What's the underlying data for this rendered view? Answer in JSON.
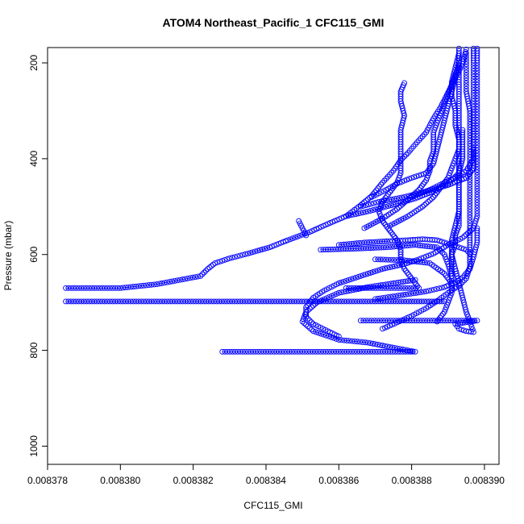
{
  "chart_data": {
    "type": "scatter",
    "title": "ATOM4 Northeast_Pacific_1 CFC115_GMI",
    "xlabel": "CFC115_GMI",
    "ylabel": "Pressure (mbar)",
    "xlim": [
      0.008378,
      0.0083904
    ],
    "ylim": [
      1038,
      168
    ],
    "y_reversed": true,
    "x_ticks": [
      "0.008378",
      "0.008380",
      "0.008382",
      "0.008384",
      "0.008386",
      "0.008388",
      "0.008390"
    ],
    "x_tick_values": [
      0.008378,
      0.00838,
      0.008382,
      0.008384,
      0.008386,
      0.008388,
      0.00839
    ],
    "y_ticks": [
      "200",
      "400",
      "600",
      "800",
      "1000"
    ],
    "y_tick_values": [
      200,
      400,
      600,
      800,
      1000
    ],
    "marker": "open-circle",
    "color": "#0000ff",
    "grid": false,
    "legend": "none",
    "series": [
      {
        "points": [
          [
            0.0083785,
            670
          ],
          [
            0.00838,
            670
          ],
          [
            0.008381,
            662
          ],
          [
            0.0083822,
            645
          ],
          [
            0.0083824,
            630
          ],
          [
            0.0083826,
            618
          ],
          [
            0.008383,
            608
          ],
          [
            0.0083835,
            598
          ],
          [
            0.0083841,
            585
          ],
          [
            0.0083846,
            570
          ],
          [
            0.0083852,
            553
          ],
          [
            0.0083857,
            536
          ],
          [
            0.0083862,
            520
          ],
          [
            0.0083866,
            497
          ],
          [
            0.0083869,
            478
          ],
          [
            0.0083872,
            450
          ],
          [
            0.0083875,
            425
          ],
          [
            0.0083877,
            403
          ],
          [
            0.0083879,
            388
          ],
          [
            0.0083881,
            370
          ],
          [
            0.0083884,
            345
          ],
          [
            0.0083886,
            316
          ],
          [
            0.0083888,
            292
          ],
          [
            0.008389,
            262
          ],
          [
            0.0083892,
            232
          ],
          [
            0.0083894,
            202
          ],
          [
            0.0083895,
            172
          ]
        ]
      },
      {
        "points": [
          [
            0.0083785,
            698
          ],
          [
            0.00838,
            698
          ],
          [
            0.008382,
            698
          ],
          [
            0.008384,
            698
          ],
          [
            0.0083852,
            698
          ],
          [
            0.008386,
            698
          ],
          [
            0.008387,
            698
          ],
          [
            0.008388,
            698
          ],
          [
            0.0083889,
            698
          ]
        ]
      },
      {
        "points": [
          [
            0.0083828,
            803
          ],
          [
            0.008384,
            803
          ],
          [
            0.008386,
            803
          ],
          [
            0.008387,
            803
          ],
          [
            0.0083881,
            803
          ],
          [
            0.0083874,
            793
          ],
          [
            0.0083868,
            784
          ],
          [
            0.008386,
            778
          ],
          [
            0.0083853,
            760
          ],
          [
            0.008385,
            740
          ],
          [
            0.0083851,
            720
          ],
          [
            0.0083854,
            700
          ],
          [
            0.008386,
            680
          ],
          [
            0.0083868,
            668
          ],
          [
            0.0083875,
            660
          ],
          [
            0.0083881,
            653
          ]
        ]
      },
      {
        "points": [
          [
            0.008386,
            771
          ],
          [
            0.0083857,
            760
          ],
          [
            0.0083853,
            745
          ],
          [
            0.0083851,
            730
          ],
          [
            0.0083851,
            710
          ],
          [
            0.0083853,
            690
          ],
          [
            0.0083856,
            675
          ],
          [
            0.008386,
            660
          ],
          [
            0.0083866,
            645
          ],
          [
            0.0083872,
            630
          ],
          [
            0.0083878,
            620
          ],
          [
            0.0083882,
            610
          ],
          [
            0.0083886,
            598
          ],
          [
            0.008389,
            580
          ],
          [
            0.0083894,
            565
          ],
          [
            0.0083897,
            545
          ],
          [
            0.0083898,
            520
          ],
          [
            0.0083898,
            480
          ],
          [
            0.0083898,
            440
          ],
          [
            0.0083898,
            400
          ],
          [
            0.0083898,
            360
          ],
          [
            0.0083898,
            320
          ],
          [
            0.0083898,
            280
          ],
          [
            0.0083898,
            240
          ],
          [
            0.0083898,
            200
          ],
          [
            0.0083898,
            170
          ]
        ]
      },
      {
        "points": [
          [
            0.0083862,
            670
          ],
          [
            0.008387,
            670
          ],
          [
            0.0083876,
            670
          ],
          [
            0.0083882,
            670
          ],
          [
            0.008388,
            650
          ],
          [
            0.0083878,
            630
          ],
          [
            0.0083877,
            610
          ],
          [
            0.0083877,
            590
          ],
          [
            0.0083876,
            570
          ],
          [
            0.0083874,
            550
          ],
          [
            0.0083872,
            530
          ],
          [
            0.0083871,
            510
          ],
          [
            0.0083872,
            490
          ],
          [
            0.0083874,
            470
          ],
          [
            0.0083876,
            450
          ],
          [
            0.0083877,
            430
          ],
          [
            0.0083877,
            400
          ],
          [
            0.0083877,
            370
          ],
          [
            0.0083877,
            340
          ],
          [
            0.0083878,
            310
          ],
          [
            0.0083877,
            280
          ],
          [
            0.0083877,
            260
          ],
          [
            0.0083878,
            242
          ]
        ]
      },
      {
        "points": [
          [
            0.0083866,
            738
          ],
          [
            0.0083872,
            738
          ],
          [
            0.008388,
            738
          ],
          [
            0.008389,
            738
          ],
          [
            0.0083898,
            738
          ],
          [
            0.0083892,
            745
          ],
          [
            0.0083893,
            755
          ],
          [
            0.0083895,
            760
          ],
          [
            0.0083897,
            762
          ],
          [
            0.0083896,
            740
          ],
          [
            0.0083895,
            720
          ],
          [
            0.0083894,
            690
          ],
          [
            0.0083893,
            660
          ],
          [
            0.0083892,
            630
          ],
          [
            0.0083891,
            600
          ],
          [
            0.0083891,
            570
          ],
          [
            0.0083892,
            540
          ],
          [
            0.0083893,
            510
          ],
          [
            0.0083893,
            480
          ],
          [
            0.0083893,
            450
          ],
          [
            0.0083893,
            420
          ],
          [
            0.0083893,
            390
          ],
          [
            0.0083893,
            360
          ],
          [
            0.0083892,
            330
          ],
          [
            0.0083892,
            300
          ],
          [
            0.0083891,
            270
          ],
          [
            0.0083891,
            240
          ],
          [
            0.0083892,
            210
          ],
          [
            0.0083893,
            180
          ],
          [
            0.0083893,
            170
          ]
        ]
      },
      {
        "points": [
          [
            0.0083872,
            755
          ],
          [
            0.0083876,
            742
          ],
          [
            0.008388,
            728
          ],
          [
            0.0083884,
            712
          ],
          [
            0.0083887,
            697
          ],
          [
            0.008389,
            680
          ],
          [
            0.0083893,
            665
          ],
          [
            0.0083895,
            650
          ],
          [
            0.0083896,
            625
          ],
          [
            0.0083896,
            600
          ],
          [
            0.0083896,
            570
          ],
          [
            0.0083896,
            540
          ],
          [
            0.0083896,
            500
          ],
          [
            0.0083896,
            460
          ],
          [
            0.0083896,
            420
          ],
          [
            0.0083896,
            380
          ],
          [
            0.0083896,
            340
          ],
          [
            0.0083896,
            300
          ],
          [
            0.0083895,
            260
          ],
          [
            0.0083895,
            220
          ],
          [
            0.0083895,
            180
          ]
        ]
      },
      {
        "points": [
          [
            0.008387,
            693
          ],
          [
            0.0083877,
            685
          ],
          [
            0.0083884,
            677
          ],
          [
            0.0083889,
            668
          ],
          [
            0.0083892,
            658
          ],
          [
            0.0083894,
            648
          ],
          [
            0.0083896,
            630
          ],
          [
            0.0083897,
            605
          ],
          [
            0.0083898,
            575
          ],
          [
            0.0083898,
            545
          ]
        ]
      },
      {
        "points": [
          [
            0.0083887,
            740
          ],
          [
            0.0083889,
            720
          ],
          [
            0.008389,
            700
          ],
          [
            0.0083891,
            680
          ],
          [
            0.0083891,
            660
          ],
          [
            0.0083891,
            640
          ],
          [
            0.0083891,
            620
          ],
          [
            0.0083891,
            600
          ],
          [
            0.0083892,
            580
          ],
          [
            0.0083892,
            560
          ],
          [
            0.0083893,
            540
          ],
          [
            0.0083893,
            520
          ],
          [
            0.0083893,
            500
          ],
          [
            0.0083893,
            480
          ],
          [
            0.0083893,
            450
          ],
          [
            0.0083893,
            420
          ],
          [
            0.0083893,
            390
          ],
          [
            0.0083893,
            360
          ],
          [
            0.0083893,
            330
          ],
          [
            0.0083893,
            300
          ],
          [
            0.0083893,
            270
          ],
          [
            0.0083893,
            240
          ],
          [
            0.0083893,
            210
          ],
          [
            0.0083893,
            180
          ]
        ]
      },
      {
        "points": [
          [
            0.008386,
            580
          ],
          [
            0.0083867,
            575
          ],
          [
            0.0083874,
            572
          ],
          [
            0.0083879,
            570
          ],
          [
            0.0083883,
            568
          ],
          [
            0.0083887,
            570
          ],
          [
            0.0083889,
            575
          ],
          [
            0.0083891,
            580
          ],
          [
            0.0083893,
            585
          ],
          [
            0.0083895,
            590
          ],
          [
            0.0083896,
            598
          ]
        ]
      },
      {
        "points": [
          [
            0.0083849,
            530
          ],
          [
            0.008385,
            545
          ],
          [
            0.0083851,
            560
          ]
        ]
      },
      {
        "points": [
          [
            0.0083855,
            590
          ],
          [
            0.0083864,
            588
          ],
          [
            0.0083873,
            585
          ],
          [
            0.0083881,
            580
          ],
          [
            0.0083887,
            585
          ],
          [
            0.0083889,
            600
          ],
          [
            0.008389,
            620
          ],
          [
            0.0083891,
            645
          ]
        ]
      },
      {
        "points": [
          [
            0.008387,
            610
          ],
          [
            0.0083878,
            612
          ],
          [
            0.0083885,
            618
          ],
          [
            0.0083889,
            640
          ],
          [
            0.0083891,
            660
          ]
        ]
      },
      {
        "points": [
          [
            0.0083866,
            500
          ],
          [
            0.0083871,
            490
          ],
          [
            0.0083878,
            480
          ],
          [
            0.0083884,
            468
          ],
          [
            0.008389,
            455
          ],
          [
            0.0083895,
            440
          ],
          [
            0.0083897,
            420
          ],
          [
            0.0083897,
            380
          ]
        ]
      },
      {
        "points": [
          [
            0.0083862,
            520
          ],
          [
            0.0083868,
            510
          ],
          [
            0.0083875,
            496
          ],
          [
            0.0083881,
            483
          ],
          [
            0.0083886,
            468
          ],
          [
            0.008389,
            452
          ],
          [
            0.0083893,
            430
          ],
          [
            0.0083894,
            400
          ],
          [
            0.0083894,
            370
          ],
          [
            0.0083894,
            340
          ]
        ]
      },
      {
        "points": [
          [
            0.0083869,
            480
          ],
          [
            0.0083873,
            465
          ],
          [
            0.0083876,
            452
          ],
          [
            0.008388,
            440
          ],
          [
            0.0083884,
            430
          ],
          [
            0.0083886,
            410
          ],
          [
            0.0083887,
            380
          ],
          [
            0.0083888,
            350
          ],
          [
            0.0083889,
            320
          ],
          [
            0.008389,
            290
          ],
          [
            0.0083891,
            260
          ],
          [
            0.0083892,
            230
          ],
          [
            0.0083893,
            200
          ]
        ]
      },
      {
        "points": [
          [
            0.0083874,
            540
          ],
          [
            0.0083879,
            520
          ],
          [
            0.0083883,
            500
          ],
          [
            0.0083886,
            480
          ],
          [
            0.0083888,
            460
          ],
          [
            0.008389,
            440
          ],
          [
            0.0083891,
            420
          ],
          [
            0.0083892,
            400
          ],
          [
            0.0083893,
            380
          ],
          [
            0.0083893,
            350
          ]
        ]
      },
      {
        "points": [
          [
            0.0083867,
            545
          ],
          [
            0.0083872,
            525
          ],
          [
            0.0083876,
            505
          ],
          [
            0.0083879,
            485
          ],
          [
            0.0083882,
            465
          ],
          [
            0.0083884,
            445
          ],
          [
            0.0083885,
            425
          ],
          [
            0.0083885,
            405
          ],
          [
            0.0083886,
            385
          ],
          [
            0.0083886,
            365
          ],
          [
            0.0083886,
            345
          ],
          [
            0.0083887,
            325
          ],
          [
            0.0083888,
            305
          ],
          [
            0.0083889,
            285
          ],
          [
            0.008389,
            265
          ],
          [
            0.0083891,
            245
          ],
          [
            0.0083892,
            225
          ],
          [
            0.0083893,
            205
          ]
        ]
      },
      {
        "points": [
          [
            0.008388,
            480
          ],
          [
            0.0083885,
            465
          ],
          [
            0.0083889,
            450
          ],
          [
            0.0083892,
            440
          ],
          [
            0.0083895,
            425
          ],
          [
            0.0083897,
            400
          ],
          [
            0.0083897,
            360
          ],
          [
            0.0083897,
            320
          ],
          [
            0.0083897,
            280
          ],
          [
            0.0083897,
            240
          ],
          [
            0.0083897,
            200
          ],
          [
            0.0083897,
            170
          ]
        ]
      }
    ]
  }
}
